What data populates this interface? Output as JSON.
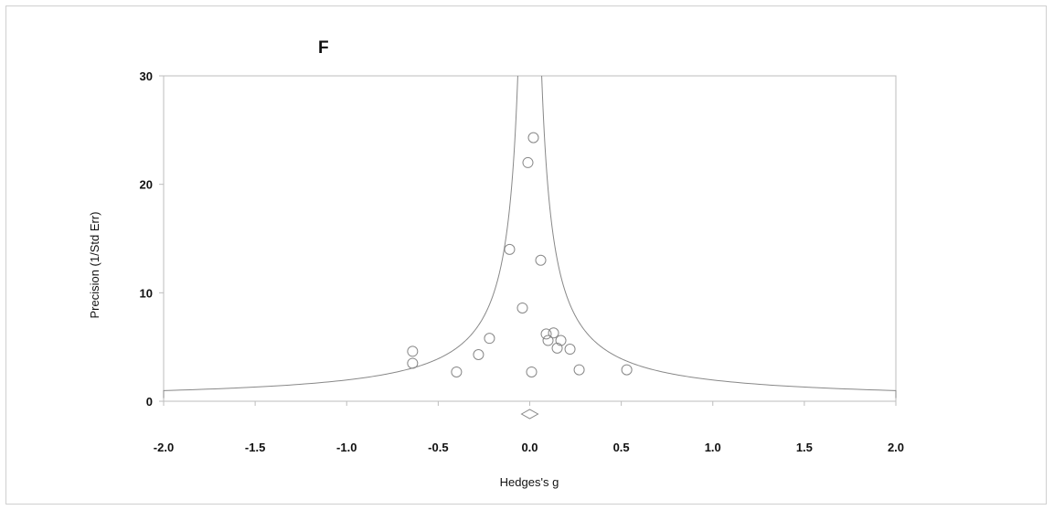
{
  "chart_data": {
    "type": "scatter",
    "panel_label": "F",
    "xlabel": "Hedges's g",
    "ylabel": "Precision (1/Std Err)",
    "xlim": [
      -2.0,
      2.0
    ],
    "ylim": [
      0,
      30
    ],
    "x_ticks": [
      "-2.0",
      "-1.5",
      "-1.0",
      "-0.5",
      "0.0",
      "0.5",
      "1.0",
      "1.5",
      "2.0"
    ],
    "y_ticks": [
      "0",
      "10",
      "20",
      "30"
    ],
    "pooled_effect": 0.0,
    "grid": false,
    "points": [
      {
        "x": 0.02,
        "y": 24.3
      },
      {
        "x": -0.01,
        "y": 22.0
      },
      {
        "x": -0.11,
        "y": 14.0
      },
      {
        "x": 0.06,
        "y": 13.0
      },
      {
        "x": -0.04,
        "y": 8.6
      },
      {
        "x": 0.09,
        "y": 6.2
      },
      {
        "x": 0.13,
        "y": 6.3
      },
      {
        "x": -0.22,
        "y": 5.8
      },
      {
        "x": 0.1,
        "y": 5.6
      },
      {
        "x": 0.17,
        "y": 5.6
      },
      {
        "x": -0.64,
        "y": 4.6
      },
      {
        "x": 0.15,
        "y": 4.9
      },
      {
        "x": 0.22,
        "y": 4.8
      },
      {
        "x": -0.28,
        "y": 4.3
      },
      {
        "x": -0.64,
        "y": 3.5
      },
      {
        "x": 0.27,
        "y": 2.9
      },
      {
        "x": 0.53,
        "y": 2.9
      },
      {
        "x": -0.4,
        "y": 2.7
      },
      {
        "x": 0.01,
        "y": 2.7
      }
    ],
    "colors": {
      "points": "#888888",
      "funnel": "#888888",
      "axis": "#bdbdbd"
    }
  }
}
